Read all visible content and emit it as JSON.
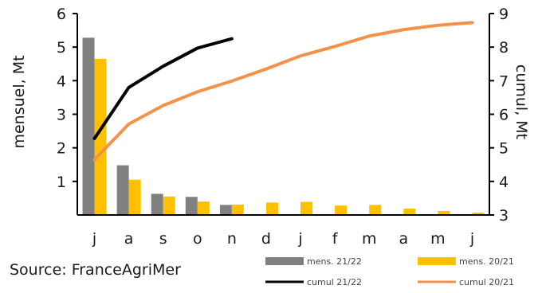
{
  "chart_data": {
    "type": "bar+line",
    "categories": [
      "j",
      "a",
      "s",
      "o",
      "n",
      "d",
      "j",
      "f",
      "m",
      "a",
      "m",
      "j"
    ],
    "ylabel": "mensuel, Mt",
    "y2label": "cumul, Mt",
    "ylim": [
      0,
      6
    ],
    "y2lim": [
      3,
      9
    ],
    "yticks": [
      1,
      2,
      3,
      4,
      5,
      6
    ],
    "y2ticks": [
      3,
      4,
      5,
      6,
      7,
      8,
      9
    ],
    "bars": [
      {
        "name": "mens. 21/22",
        "color": "#808080",
        "values": [
          5.28,
          1.48,
          0.63,
          0.54,
          0.3,
          null,
          null,
          null,
          null,
          null,
          null,
          null
        ]
      },
      {
        "name": "mens. 20/21",
        "color": "#ffc000",
        "values": [
          4.65,
          1.05,
          0.55,
          0.4,
          0.31,
          0.37,
          0.39,
          0.28,
          0.3,
          0.19,
          0.12,
          0.07
        ]
      }
    ],
    "lines": [
      {
        "name": "cumul 21/22",
        "color": "#000000",
        "axis": "right",
        "values": [
          5.28,
          6.8,
          7.43,
          7.97,
          8.25,
          null,
          null,
          null,
          null,
          null,
          null,
          null
        ]
      },
      {
        "name": "cumul 20/21",
        "color": "#f4924a",
        "axis": "right",
        "values": [
          4.65,
          5.71,
          6.26,
          6.67,
          6.99,
          7.35,
          7.74,
          8.02,
          8.33,
          8.52,
          8.65,
          8.73
        ]
      }
    ],
    "legend_position": "bottom-right"
  },
  "source": "Source: FranceAgriMer"
}
